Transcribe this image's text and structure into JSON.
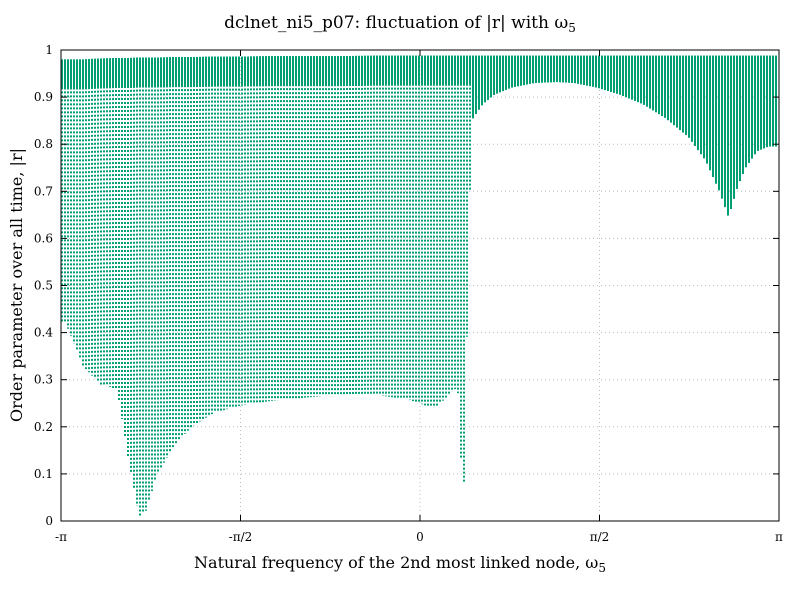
{
  "chart_data": {
    "type": "scatter",
    "title": "dclnet_ni5_p07: fluctuation of |r| with ω",
    "title_subscript": "5",
    "xlabel": "Natural frequency of the 2nd most linked node, ω",
    "xlabel_subscript": "5",
    "ylabel": "Order parameter over all time, |r|",
    "xlim": [
      -3.14159,
      3.14159
    ],
    "ylim": [
      0,
      1
    ],
    "x_ticks": [
      {
        "value": -3.14159,
        "label": "-π"
      },
      {
        "value": -1.5708,
        "label": "-π/2"
      },
      {
        "value": 0,
        "label": "0"
      },
      {
        "value": 1.5708,
        "label": "π/2"
      },
      {
        "value": 3.14159,
        "label": "π"
      }
    ],
    "y_ticks": [
      {
        "value": 0,
        "label": "0"
      },
      {
        "value": 0.1,
        "label": "0.1"
      },
      {
        "value": 0.2,
        "label": "0.2"
      },
      {
        "value": 0.3,
        "label": "0.3"
      },
      {
        "value": 0.4,
        "label": "0.4"
      },
      {
        "value": 0.5,
        "label": "0.5"
      },
      {
        "value": 0.6,
        "label": "0.6"
      },
      {
        "value": 0.7,
        "label": "0.7"
      },
      {
        "value": 0.8,
        "label": "0.8"
      },
      {
        "value": 0.9,
        "label": "0.9"
      },
      {
        "value": 1,
        "label": "1"
      }
    ],
    "grid": true,
    "color": "#009e73",
    "series": [
      {
        "x": [
          -3.1,
          -2.95,
          -2.8,
          -2.65,
          -2.55,
          -2.46,
          -2.4,
          -2.3,
          -2.15,
          -2.0,
          -1.8,
          -1.57,
          -1.3,
          -1.0,
          -0.7,
          -0.4,
          -0.1,
          0.05,
          0.12,
          0.18,
          0.25,
          0.33,
          0.38,
          0.45
        ],
        "min": [
          0.42,
          0.33,
          0.29,
          0.28,
          0.13,
          0.01,
          0.02,
          0.1,
          0.16,
          0.2,
          0.23,
          0.245,
          0.255,
          0.262,
          0.268,
          0.268,
          0.258,
          0.245,
          0.24,
          0.25,
          0.268,
          0.285,
          0.02,
          0.85
        ],
        "max": [
          0.98,
          0.98,
          0.982,
          0.983,
          0.983,
          0.984,
          0.984,
          0.984,
          0.985,
          0.985,
          0.986,
          0.986,
          0.987,
          0.987,
          0.987,
          0.988,
          0.988,
          0.988,
          0.988,
          0.988,
          0.988,
          0.988,
          0.988,
          0.988
        ]
      },
      {
        "x": [
          0.45,
          0.55,
          0.65,
          0.8,
          1.0,
          1.2,
          1.35,
          1.55,
          1.75,
          1.95,
          2.15,
          2.35,
          2.5,
          2.62,
          2.7,
          2.78,
          2.85,
          2.95,
          3.05,
          3.14
        ],
        "min": [
          0.85,
          0.885,
          0.905,
          0.92,
          0.93,
          0.932,
          0.93,
          0.92,
          0.905,
          0.885,
          0.855,
          0.815,
          0.765,
          0.7,
          0.645,
          0.71,
          0.75,
          0.785,
          0.795,
          0.795
        ],
        "max": [
          0.988,
          0.988,
          0.988,
          0.988,
          0.988,
          0.988,
          0.988,
          0.988,
          0.988,
          0.988,
          0.988,
          0.988,
          0.988,
          0.988,
          0.988,
          0.988,
          0.988,
          0.988,
          0.988,
          0.988
        ]
      }
    ],
    "annotations": []
  }
}
